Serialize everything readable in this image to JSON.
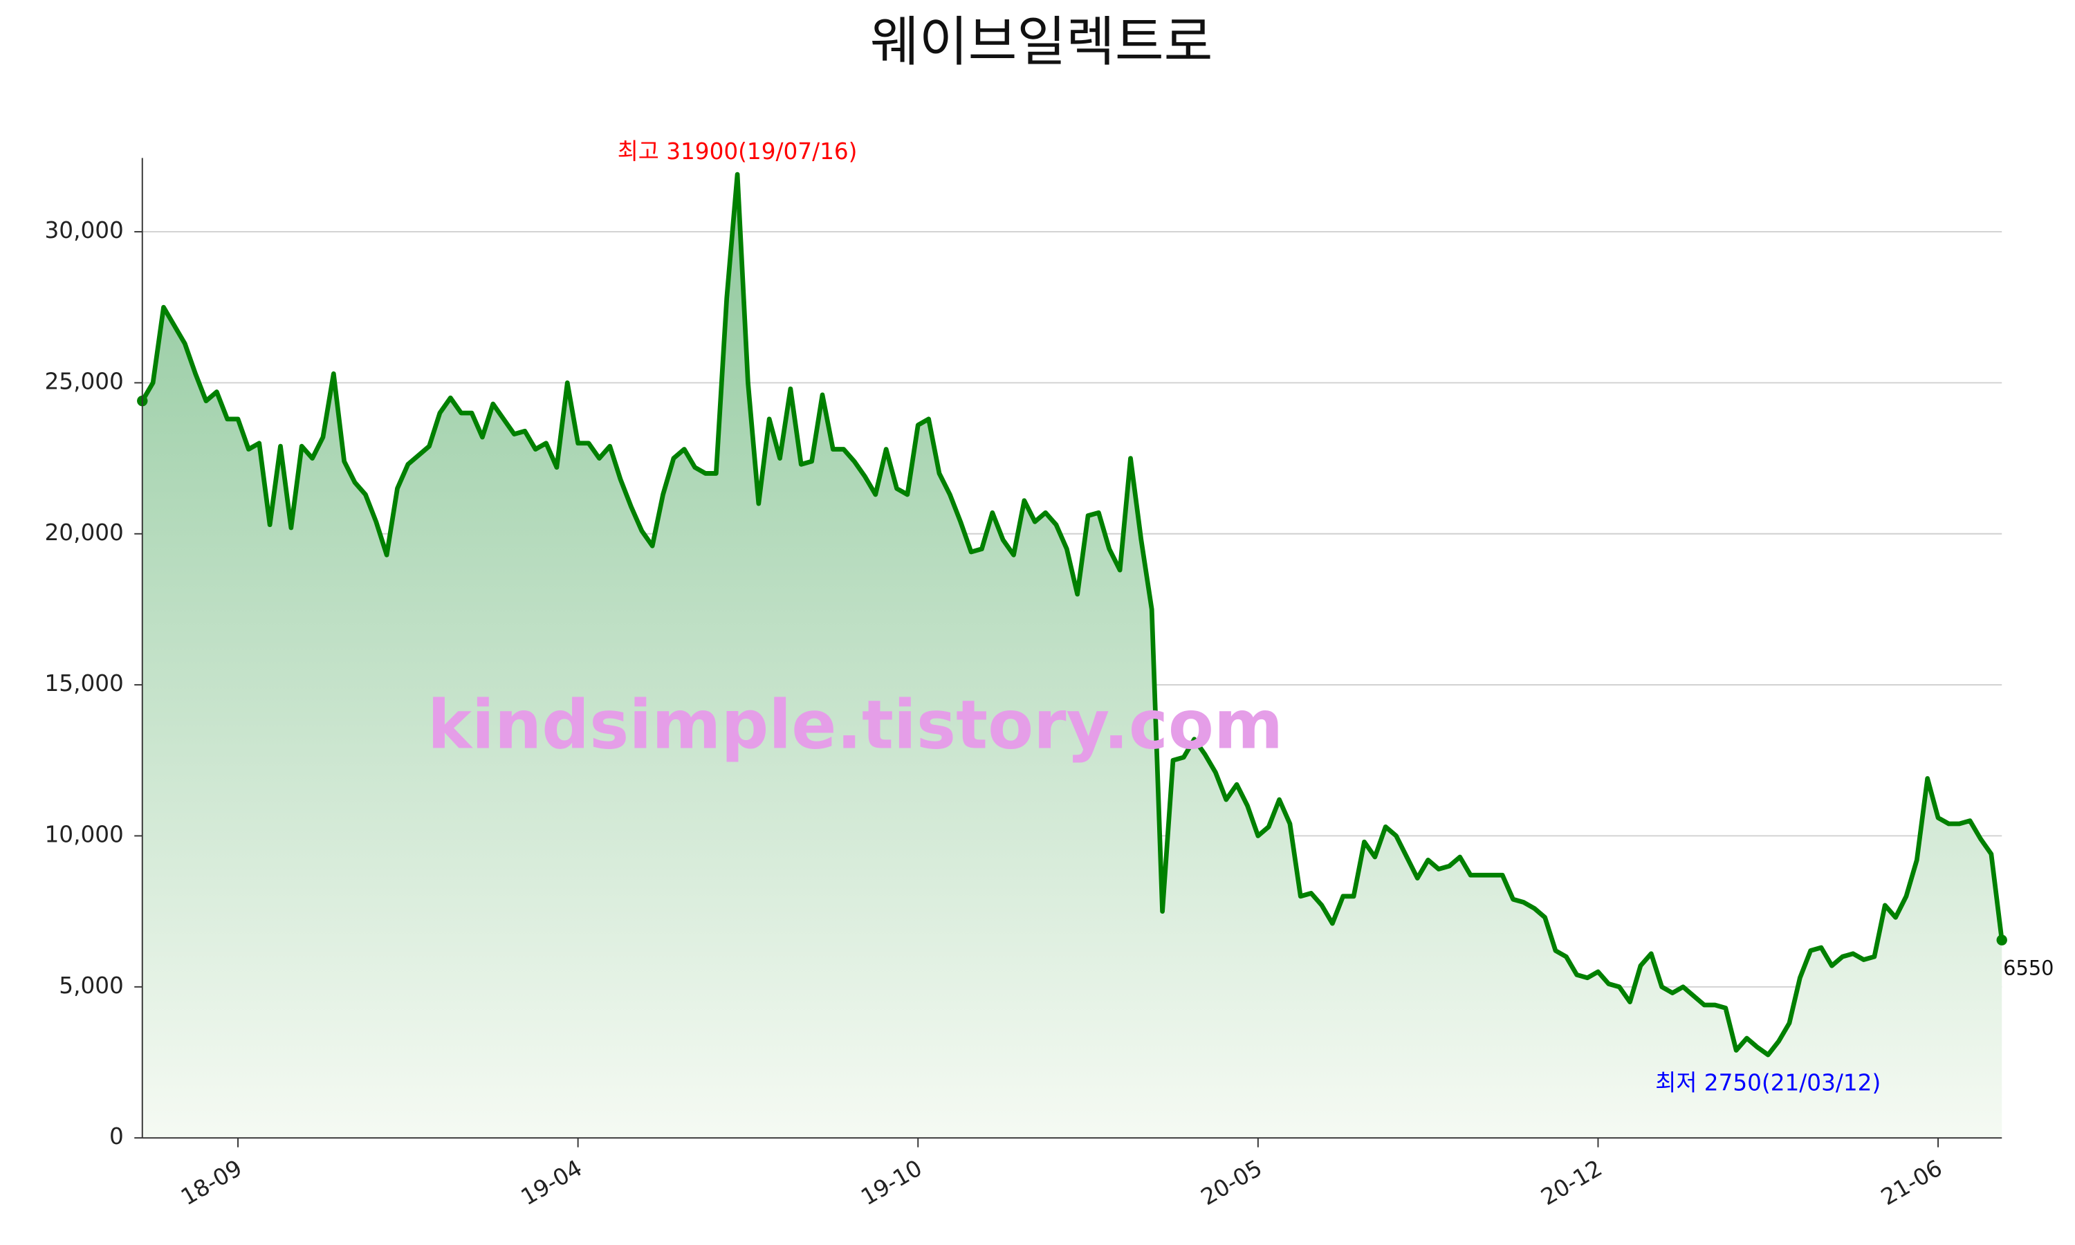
{
  "chart_data": {
    "type": "area",
    "title": "웨이브일렉트로",
    "watermark": "kindsimple.tistory.com",
    "color": "#008000",
    "fill_top": "#8fc89c",
    "fill_bottom": "#f5faf3",
    "grid": true,
    "ylim": [
      0,
      32000
    ],
    "yticks": [
      0,
      {
        "value": 5000,
        "label": "5,000"
      },
      {
        "value": 10000,
        "label": "10,000"
      },
      {
        "value": 15000,
        "label": "15,000"
      },
      {
        "value": 20000,
        "label": "20,000"
      },
      {
        "value": 25000,
        "label": "25,000"
      },
      {
        "value": 30000,
        "label": "30,000"
      }
    ],
    "categories": [
      null,
      null,
      null,
      null,
      null,
      null,
      null,
      null,
      null,
      "18-09",
      null,
      null,
      null,
      null,
      null,
      null,
      null,
      null,
      null,
      null,
      null,
      null,
      null,
      null,
      null,
      null,
      null,
      null,
      null,
      null,
      null,
      null,
      null,
      null,
      null,
      null,
      null,
      null,
      null,
      null,
      null,
      "19-04",
      null,
      null,
      null,
      null,
      null,
      null,
      null,
      null,
      null,
      null,
      null,
      null,
      null,
      null,
      null,
      null,
      null,
      null,
      null,
      null,
      null,
      null,
      null,
      null,
      null,
      null,
      null,
      null,
      null,
      null,
      null,
      "19-10",
      null,
      null,
      null,
      null,
      null,
      null,
      null,
      null,
      null,
      null,
      null,
      null,
      null,
      null,
      null,
      null,
      null,
      null,
      null,
      null,
      null,
      null,
      null,
      null,
      null,
      null,
      null,
      null,
      null,
      null,
      null,
      "20-05",
      null,
      null,
      null,
      null,
      null,
      null,
      null,
      null,
      null,
      null,
      null,
      null,
      null,
      null,
      null,
      null,
      null,
      null,
      null,
      null,
      null,
      null,
      null,
      null,
      null,
      null,
      null,
      null,
      null,
      null,
      null,
      "20-12",
      null,
      null,
      null,
      null,
      null,
      null,
      null,
      null,
      null,
      null,
      null,
      null,
      null,
      null,
      null,
      null,
      null,
      null,
      null,
      null,
      null,
      null,
      null,
      null,
      null,
      null,
      null,
      null,
      null,
      null,
      null,
      "21-06",
      null,
      null,
      null,
      null,
      null,
      null
    ],
    "values": [
      24400,
      25000,
      27500,
      26900,
      26300,
      25300,
      24400,
      24700,
      23800,
      23800,
      22800,
      23000,
      20300,
      22900,
      20200,
      22900,
      22500,
      23200,
      25300,
      22400,
      21700,
      21300,
      20400,
      19300,
      21500,
      22300,
      22600,
      22900,
      24000,
      24500,
      24000,
      24000,
      23200,
      24300,
      23800,
      23300,
      23400,
      22800,
      23000,
      22200,
      25000,
      23000,
      23000,
      22500,
      22900,
      21800,
      20900,
      20100,
      19600,
      21300,
      22500,
      22800,
      22200,
      22000,
      22000,
      27800,
      31900,
      25000,
      21000,
      23800,
      22500,
      24800,
      22300,
      22400,
      24600,
      22800,
      22800,
      22400,
      21900,
      21300,
      22800,
      21500,
      21300,
      23600,
      23800,
      22000,
      21300,
      20400,
      19400,
      19500,
      20700,
      19800,
      19300,
      21100,
      20400,
      20700,
      20300,
      19500,
      18000,
      20600,
      20700,
      19500,
      18800,
      22500,
      19800,
      17500,
      7500,
      12500,
      12600,
      13200,
      12700,
      12100,
      11200,
      11700,
      11000,
      10000,
      10300,
      11200,
      10400,
      8000,
      8100,
      7700,
      7100,
      8000,
      8000,
      9800,
      9300,
      10300,
      10000,
      9300,
      8600,
      9200,
      8900,
      9000,
      9300,
      8700,
      8700,
      8700,
      8700,
      7900,
      7800,
      7600,
      7300,
      6200,
      6000,
      5400,
      5300,
      5500,
      5100,
      5000,
      4500,
      5700,
      6100,
      5000,
      4800,
      5000,
      4700,
      4400,
      4400,
      4300,
      2900,
      3300,
      3000,
      2750,
      3200,
      3800,
      5300,
      6200,
      6300,
      5700,
      6000,
      6100,
      5900,
      6000,
      7700,
      7300,
      8000,
      9200,
      11900,
      10600,
      10400,
      10400,
      10500,
      9900,
      9400,
      6550
    ],
    "annotations": [
      {
        "text": "최고 31900(19/07/16)",
        "color": "#ff0000"
      },
      {
        "text": "최저 2750(21/03/12)",
        "color": "#0000ff"
      }
    ]
  }
}
